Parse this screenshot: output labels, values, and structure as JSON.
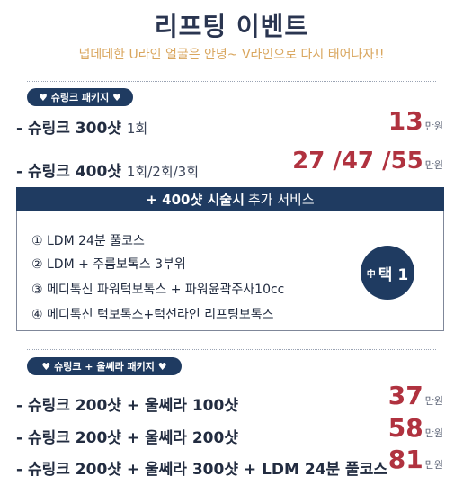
{
  "header": {
    "title": "리프팅 이벤트",
    "subtitle": "넙데데한 U라인 얼굴은 안녕~ V라인으로 다시 태어나자!!"
  },
  "package1": {
    "badge": "♥ 슈링크 패키지 ♥",
    "items": [
      {
        "label": "- 슈링크 300샷",
        "sub": "1회",
        "price": "13",
        "unit": "만원"
      },
      {
        "label": "- 슈링크 400샷",
        "sub": "1회/2회/3회",
        "price": "27 /47 /55",
        "unit": "만원"
      }
    ]
  },
  "bonus": {
    "bar_main": "+ 400샷 시술시",
    "bar_sub": "추가 서비스",
    "options": [
      "① LDM 24분 풀코스",
      "② LDM + 주름보톡스 3부위",
      "③ 메디톡신 파워턱보톡스 + 파워윤곽주사10cc",
      "④ 메디톡신 턱보톡스+턱선라인 리프팅보톡스"
    ],
    "choose_small": "中",
    "choose_big": "택 1"
  },
  "package2": {
    "badge": "♥ 슈링크 + 울쎄라 패키지 ♥",
    "items": [
      {
        "label": "- 슈링크 200샷 + 울쎄라 100샷",
        "price": "37",
        "unit": "만원"
      },
      {
        "label": "- 슈링크 200샷 + 울쎄라 200샷",
        "price": "58",
        "unit": "만원"
      },
      {
        "label": "- 슈링크 200샷 + 울쎄라 300샷 + LDM 24분 풀코스",
        "price": "81",
        "unit": "만원"
      }
    ]
  },
  "colors": {
    "navy": "#1f3b61",
    "price_red": "#b0323f",
    "subtitle_gold": "#d9a65e"
  }
}
